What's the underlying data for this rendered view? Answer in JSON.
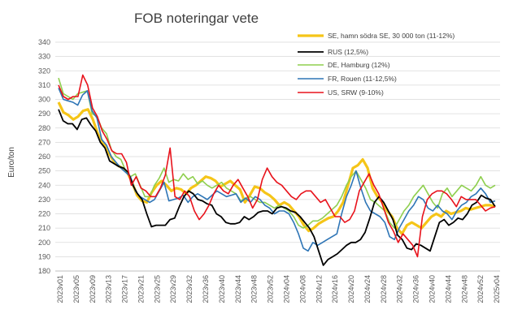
{
  "chart_data": {
    "type": "line",
    "title": "FOB noteringar vete",
    "ylabel": "Euro/ton",
    "xlabel": "",
    "ylim": [
      180,
      340
    ],
    "y_ticks": [
      180,
      190,
      200,
      210,
      220,
      230,
      240,
      250,
      260,
      270,
      280,
      290,
      300,
      310,
      320,
      330,
      340
    ],
    "grid": true,
    "legend_position": "top-right",
    "x_ticks": [
      "2023v01",
      "2023v05",
      "2023v09",
      "2023v13",
      "2023v17",
      "2023v21",
      "2023v25",
      "2023v29",
      "2023v32",
      "2023v36",
      "2023v40",
      "2023v44",
      "2023v48",
      "2023v52",
      "2024v04",
      "2024v08",
      "2024v12",
      "2024v16",
      "2024v20",
      "2024v24",
      "2024v28",
      "2024v32",
      "2024v36",
      "2024v40",
      "2024v44",
      "2024v48",
      "2024v52",
      "2025v04"
    ],
    "series": [
      {
        "name": "SE, hamn södra SE, 30 000 ton (11-12%)",
        "color": "#f5c518",
        "width": 3.2,
        "values": [
          298,
          291,
          289,
          286,
          288,
          292,
          293,
          286,
          276,
          270,
          264,
          258,
          254,
          252,
          249,
          242,
          233,
          229,
          228,
          235,
          240,
          243,
          240,
          236,
          238,
          237,
          234,
          238,
          240,
          243,
          246,
          245,
          243,
          239,
          241,
          243,
          240,
          237,
          228,
          233,
          239,
          238,
          235,
          233,
          230,
          226,
          228,
          226,
          222,
          218,
          212,
          208,
          210,
          213,
          215,
          217,
          218,
          222,
          228,
          240,
          252,
          254,
          258,
          252,
          238,
          232,
          228,
          222,
          218,
          210,
          206,
          212,
          214,
          212,
          210,
          214,
          218,
          220,
          218,
          222,
          220,
          221,
          222,
          224,
          223,
          224,
          225,
          226,
          226,
          225
        ]
      },
      {
        "name": "RUS (12,5%)",
        "color": "#000000",
        "width": 1.8,
        "values": [
          293,
          285,
          283,
          283,
          279,
          286,
          287,
          282,
          278,
          270,
          266,
          257,
          255,
          253,
          252,
          249,
          240,
          234,
          230,
          220,
          211,
          212,
          212,
          212,
          216,
          217,
          225,
          232,
          236,
          234,
          230,
          229,
          227,
          226,
          220,
          218,
          214,
          213,
          213,
          214,
          218,
          216,
          218,
          221,
          222,
          222,
          220,
          224,
          225,
          224,
          222,
          221,
          218,
          214,
          210,
          204,
          194,
          184,
          188,
          190,
          192,
          195,
          198,
          200,
          200,
          202,
          207,
          217,
          228,
          232,
          228,
          222,
          216,
          205,
          202,
          196,
          195,
          199,
          198,
          196,
          194,
          204,
          214,
          216,
          212,
          214,
          217,
          216,
          220,
          226,
          228,
          233,
          231,
          230,
          225
        ]
      },
      {
        "name": "DE, Hamburg (12%)",
        "color": "#8fcf4f",
        "width": 1.6,
        "values": [
          315,
          304,
          302,
          300,
          304,
          305,
          306,
          290,
          288,
          280,
          276,
          265,
          260,
          258,
          250,
          246,
          248,
          240,
          232,
          232,
          240,
          245,
          252,
          242,
          244,
          243,
          248,
          244,
          246,
          241,
          243,
          240,
          238,
          240,
          242,
          238,
          236,
          234,
          229,
          231,
          232,
          230,
          228,
          228,
          226,
          224,
          226,
          224,
          222,
          218,
          212,
          210,
          212,
          215,
          215,
          217,
          220,
          223,
          226,
          232,
          240,
          246,
          250,
          244,
          238,
          230,
          228,
          225,
          222,
          214,
          210,
          216,
          222,
          226,
          232,
          236,
          240,
          234,
          228,
          224,
          234,
          238,
          232,
          236,
          240,
          238,
          236,
          240,
          246,
          240,
          238,
          240
        ]
      },
      {
        "name": "FR, Rouen (11-12,5%)",
        "color": "#2e75b6",
        "width": 1.6,
        "values": [
          308,
          300,
          299,
          298,
          296,
          303,
          306,
          292,
          287,
          272,
          268,
          260,
          256,
          252,
          249,
          246,
          236,
          232,
          230,
          228,
          230,
          236,
          242,
          229,
          230,
          231,
          233,
          228,
          232,
          234,
          232,
          230,
          233,
          236,
          234,
          232,
          233,
          234,
          228,
          231,
          228,
          232,
          230,
          226,
          224,
          220,
          222,
          222,
          220,
          214,
          206,
          196,
          194,
          200,
          198,
          200,
          202,
          204,
          206,
          220,
          232,
          240,
          250,
          238,
          228,
          222,
          220,
          218,
          214,
          204,
          202,
          210,
          216,
          222,
          226,
          232,
          230,
          224,
          222,
          226,
          222,
          220,
          216,
          222,
          226,
          228,
          232,
          234,
          238,
          234,
          228,
          229
        ]
      },
      {
        "name": "US, SRW (9-10%)",
        "color": "#e8121b",
        "width": 1.6,
        "values": [
          310,
          302,
          300,
          302,
          302,
          317,
          310,
          294,
          288,
          278,
          272,
          264,
          262,
          262,
          256,
          240,
          246,
          238,
          236,
          232,
          232,
          238,
          247,
          266,
          232,
          230,
          236,
          232,
          222,
          216,
          220,
          226,
          234,
          240,
          236,
          234,
          240,
          244,
          238,
          232,
          224,
          230,
          244,
          252,
          246,
          242,
          240,
          236,
          232,
          230,
          234,
          236,
          236,
          232,
          228,
          230,
          224,
          218,
          218,
          214,
          216,
          222,
          236,
          242,
          248,
          240,
          234,
          224,
          214,
          208,
          200,
          206,
          202,
          198,
          190,
          218,
          230,
          234,
          236,
          236,
          234,
          230,
          225,
          232,
          230,
          230,
          230,
          226,
          222,
          224,
          225
        ]
      }
    ]
  }
}
